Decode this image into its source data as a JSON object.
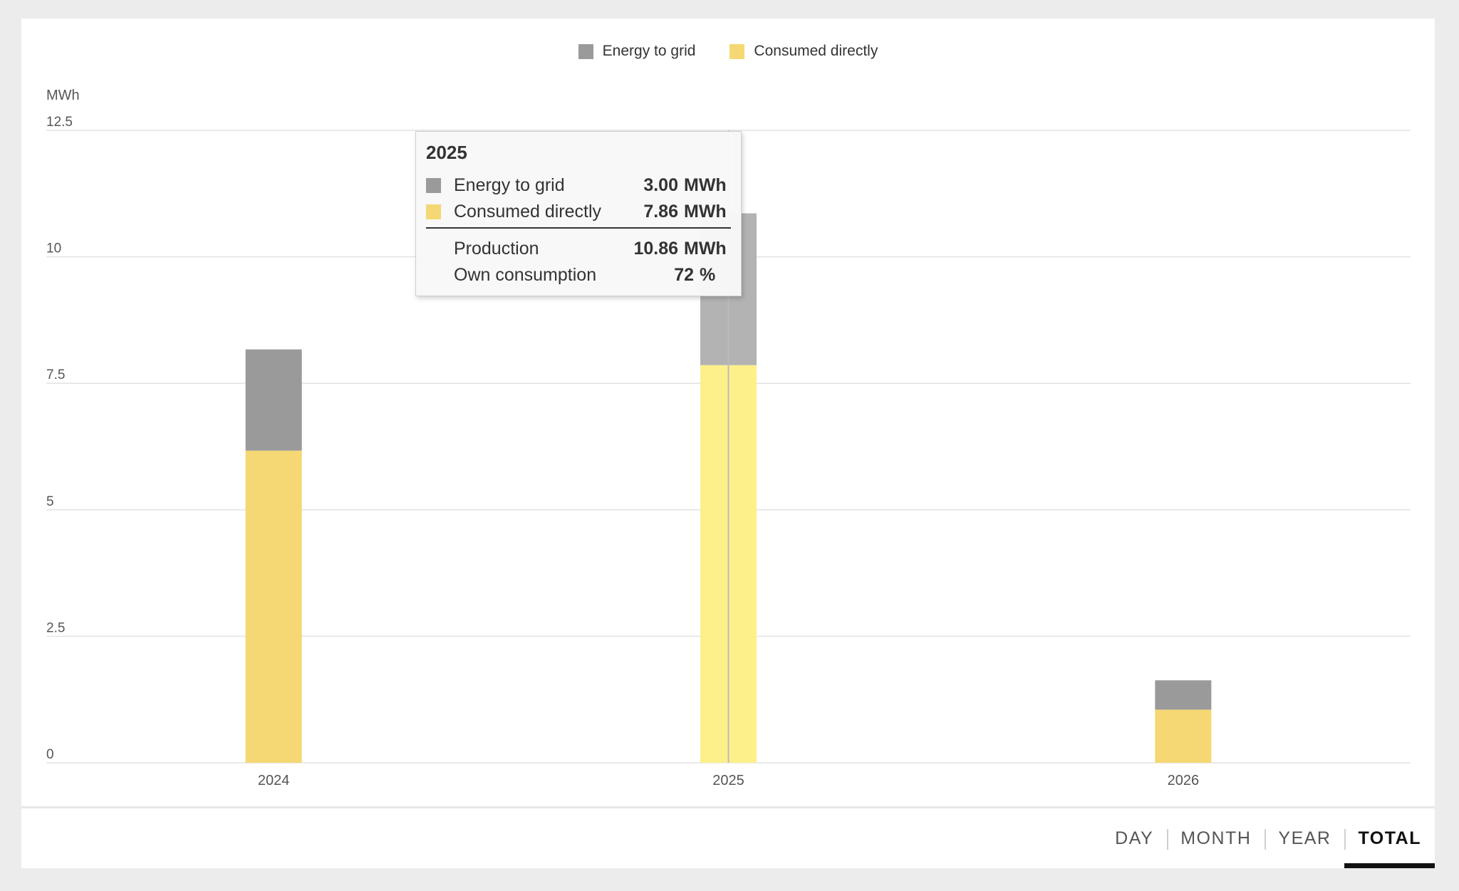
{
  "chart_data": {
    "type": "bar",
    "stacked": true,
    "unit_label": "MWh",
    "categories": [
      "2024",
      "2025",
      "2026"
    ],
    "series": [
      {
        "name": "Consumed directly",
        "values": [
          6.17,
          7.86,
          1.05
        ],
        "color": "#f5d874"
      },
      {
        "name": "Energy to grid",
        "values": [
          2.0,
          3.0,
          0.58
        ],
        "color": "#9a9a9a"
      }
    ],
    "ylim": [
      0,
      12.5
    ],
    "yticks": [
      "0",
      "2.5",
      "5",
      "7.5",
      "10",
      "12.5"
    ],
    "legend_position": "top-center",
    "grid": true,
    "highlight_index": 1,
    "highlight_colors": {
      "Consumed directly": "#fdf08a",
      "Energy to grid": "#b3b3b3"
    }
  },
  "legend": [
    {
      "label": "Energy to grid",
      "color": "#9a9a9a"
    },
    {
      "label": "Consumed directly",
      "color": "#f5d874"
    }
  ],
  "tooltip": {
    "title": "2025",
    "rows": [
      {
        "label": "Energy to grid",
        "value": "3.00",
        "unit": "MWh",
        "color": "#9a9a9a"
      },
      {
        "label": "Consumed directly",
        "value": "7.86",
        "unit": "MWh",
        "color": "#f5d874"
      }
    ],
    "totals": [
      {
        "label": "Production",
        "value": "10.86",
        "unit": "MWh"
      },
      {
        "label": "Own consumption",
        "value": "72",
        "unit": "%"
      }
    ]
  },
  "period_tabs": [
    {
      "label": "DAY",
      "active": false
    },
    {
      "label": "MONTH",
      "active": false
    },
    {
      "label": "YEAR",
      "active": false
    },
    {
      "label": "TOTAL",
      "active": true
    }
  ]
}
